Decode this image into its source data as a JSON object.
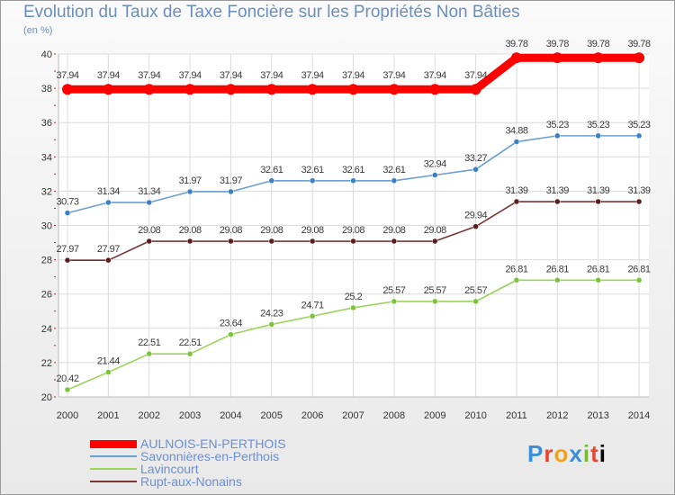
{
  "chart_data": {
    "type": "line",
    "title": "Evolution du Taux de Taxe Foncière sur les Propriétés Non Bâties",
    "ylabel": "(en %)",
    "x": [
      "2000",
      "2001",
      "2002",
      "2003",
      "2004",
      "2005",
      "2006",
      "2007",
      "2008",
      "2009",
      "2010",
      "2011",
      "2012",
      "2013",
      "2014"
    ],
    "ylim": [
      20,
      40
    ],
    "yticks": [
      "20",
      "22",
      "24",
      "26",
      "28",
      "30",
      "32",
      "34",
      "36",
      "38",
      "40"
    ],
    "series": [
      {
        "name": "AULNOIS-EN-PERTHOIS",
        "color": "#ff0000",
        "marker_color": "#ff0000",
        "values": [
          37.94,
          37.94,
          37.94,
          37.94,
          37.94,
          37.94,
          37.94,
          37.94,
          37.94,
          37.94,
          37.94,
          39.78,
          39.78,
          39.78,
          39.78
        ],
        "labels": [
          "37.94",
          "37.94",
          "37.94",
          "37.94",
          "37.94",
          "37.94",
          "37.94",
          "37.94",
          "37.94",
          "37.94",
          "37.94",
          "39.78",
          "39.78",
          "39.78",
          "39.78"
        ]
      },
      {
        "name": "Savonnières-en-Perthois",
        "color": "#6a9fd4",
        "marker_color": "#3d7fc4",
        "values": [
          30.73,
          31.34,
          31.34,
          31.97,
          31.97,
          32.61,
          32.61,
          32.61,
          32.61,
          32.94,
          33.27,
          34.88,
          35.23,
          35.23,
          35.23
        ],
        "labels": [
          "30.73",
          "31.34",
          "31.34",
          "31.97",
          "31.97",
          "32.61",
          "32.61",
          "32.61",
          "32.61",
          "32.94",
          "33.27",
          "34.88",
          "35.23",
          "35.23",
          "35.23"
        ]
      },
      {
        "name": "Lavincourt",
        "color": "#9ad45a",
        "marker_color": "#7cc43a",
        "values": [
          20.42,
          21.44,
          22.51,
          22.51,
          23.64,
          24.23,
          24.71,
          25.2,
          25.57,
          25.57,
          25.57,
          26.81,
          26.81,
          26.81,
          26.81
        ],
        "labels": [
          "20.42",
          "21.44",
          "22.51",
          "22.51",
          "23.64",
          "24.23",
          "24.71",
          "25.2",
          "25.57",
          "25.57",
          "25.57",
          "26.81",
          "26.81",
          "26.81",
          "26.81"
        ]
      },
      {
        "name": "Rupt-aux-Nonains",
        "color": "#7a3535",
        "marker_color": "#5a1e1e",
        "values": [
          27.97,
          27.97,
          29.08,
          29.08,
          29.08,
          29.08,
          29.08,
          29.08,
          29.08,
          29.08,
          29.94,
          31.39,
          31.39,
          31.39,
          31.39
        ],
        "labels": [
          "27.97",
          "27.97",
          "29.08",
          "29.08",
          "29.08",
          "29.08",
          "29.08",
          "29.08",
          "29.08",
          "29.08",
          "29.94",
          "31.39",
          "31.39",
          "31.39",
          "31.39"
        ]
      }
    ],
    "legend_position": "bottom-left"
  },
  "legend": {
    "items": [
      {
        "name": "AULNOIS-EN-PERTHOIS",
        "color": "#ff0000",
        "text_color": "#6a8fd8"
      },
      {
        "name": "Savonnières-en-Perthois",
        "color": "#6a9fd4",
        "text_color": "#6a8fd8"
      },
      {
        "name": "Lavincourt",
        "color": "#9ad45a",
        "text_color": "#6a8fd8"
      },
      {
        "name": "Rupt-aux-Nonains",
        "color": "#7a3535",
        "text_color": "#6a8fd8"
      }
    ]
  },
  "logo": {
    "letters": [
      "P",
      "r",
      "o",
      "x",
      "i",
      "t",
      "i"
    ]
  }
}
